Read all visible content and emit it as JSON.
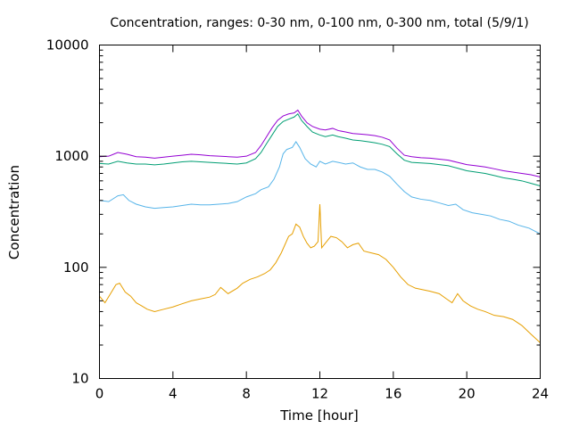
{
  "chart_data": {
    "type": "line",
    "title": "Concentration, ranges: 0-30 nm, 0-100 nm, 0-300 nm, total (5/9/1)",
    "xlabel": "Time [hour]",
    "ylabel": "Concentration",
    "xlim": [
      0,
      24
    ],
    "ylim": [
      10,
      10000
    ],
    "yscale": "log",
    "grid": false,
    "legend": "none",
    "x_ticks": [
      0,
      4,
      8,
      12,
      16,
      20,
      24
    ],
    "y_ticks": [
      10,
      100,
      1000,
      10000
    ],
    "x_tick_labels": [
      "0",
      "4",
      "8",
      "12",
      "16",
      "20",
      "24"
    ],
    "y_tick_labels": [
      "10",
      "100",
      "1000",
      "10000"
    ],
    "series": [
      {
        "color": "#e69f00",
        "points": [
          [
            0,
            55
          ],
          [
            0.3,
            48
          ],
          [
            0.6,
            58
          ],
          [
            0.9,
            70
          ],
          [
            1.1,
            72
          ],
          [
            1.4,
            60
          ],
          [
            1.7,
            55
          ],
          [
            2.0,
            48
          ],
          [
            2.3,
            45
          ],
          [
            2.6,
            42
          ],
          [
            3.0,
            40
          ],
          [
            3.5,
            42
          ],
          [
            4.0,
            44
          ],
          [
            4.5,
            47
          ],
          [
            5.0,
            50
          ],
          [
            5.5,
            52
          ],
          [
            6.0,
            54
          ],
          [
            6.3,
            57
          ],
          [
            6.6,
            66
          ],
          [
            7.0,
            58
          ],
          [
            7.5,
            65
          ],
          [
            7.8,
            72
          ],
          [
            8.2,
            78
          ],
          [
            8.6,
            82
          ],
          [
            9.0,
            88
          ],
          [
            9.3,
            95
          ],
          [
            9.6,
            110
          ],
          [
            9.9,
            135
          ],
          [
            10.1,
            160
          ],
          [
            10.3,
            190
          ],
          [
            10.5,
            200
          ],
          [
            10.7,
            245
          ],
          [
            10.9,
            230
          ],
          [
            11.1,
            190
          ],
          [
            11.3,
            165
          ],
          [
            11.5,
            150
          ],
          [
            11.7,
            155
          ],
          [
            11.9,
            170
          ],
          [
            12.0,
            370
          ],
          [
            12.1,
            150
          ],
          [
            12.3,
            165
          ],
          [
            12.6,
            190
          ],
          [
            12.9,
            185
          ],
          [
            13.2,
            170
          ],
          [
            13.5,
            150
          ],
          [
            13.8,
            160
          ],
          [
            14.1,
            165
          ],
          [
            14.4,
            140
          ],
          [
            14.8,
            135
          ],
          [
            15.2,
            130
          ],
          [
            15.6,
            118
          ],
          [
            16.0,
            100
          ],
          [
            16.4,
            82
          ],
          [
            16.8,
            70
          ],
          [
            17.2,
            65
          ],
          [
            17.6,
            63
          ],
          [
            18.0,
            61
          ],
          [
            18.5,
            58
          ],
          [
            18.9,
            52
          ],
          [
            19.2,
            48
          ],
          [
            19.5,
            58
          ],
          [
            19.8,
            50
          ],
          [
            20.2,
            45
          ],
          [
            20.6,
            42
          ],
          [
            21.0,
            40
          ],
          [
            21.5,
            37
          ],
          [
            22.0,
            36
          ],
          [
            22.5,
            34
          ],
          [
            23.0,
            30
          ],
          [
            23.5,
            25
          ],
          [
            24.0,
            21
          ]
        ]
      },
      {
        "color": "#56b4e9",
        "points": [
          [
            0,
            400
          ],
          [
            0.5,
            390
          ],
          [
            1.0,
            440
          ],
          [
            1.3,
            450
          ],
          [
            1.6,
            400
          ],
          [
            2.0,
            370
          ],
          [
            2.5,
            350
          ],
          [
            3.0,
            340
          ],
          [
            3.5,
            345
          ],
          [
            4.0,
            350
          ],
          [
            4.5,
            360
          ],
          [
            5.0,
            370
          ],
          [
            5.5,
            365
          ],
          [
            6.0,
            365
          ],
          [
            6.5,
            370
          ],
          [
            7.0,
            375
          ],
          [
            7.5,
            390
          ],
          [
            8.0,
            430
          ],
          [
            8.5,
            460
          ],
          [
            8.8,
            500
          ],
          [
            9.2,
            530
          ],
          [
            9.5,
            620
          ],
          [
            9.8,
            800
          ],
          [
            10.0,
            1050
          ],
          [
            10.2,
            1150
          ],
          [
            10.5,
            1200
          ],
          [
            10.7,
            1350
          ],
          [
            10.9,
            1200
          ],
          [
            11.2,
            950
          ],
          [
            11.5,
            850
          ],
          [
            11.8,
            800
          ],
          [
            12.0,
            900
          ],
          [
            12.3,
            850
          ],
          [
            12.7,
            900
          ],
          [
            13.0,
            880
          ],
          [
            13.4,
            850
          ],
          [
            13.8,
            870
          ],
          [
            14.2,
            800
          ],
          [
            14.6,
            760
          ],
          [
            15.0,
            760
          ],
          [
            15.4,
            720
          ],
          [
            15.8,
            660
          ],
          [
            16.2,
            560
          ],
          [
            16.6,
            480
          ],
          [
            17.0,
            430
          ],
          [
            17.5,
            410
          ],
          [
            18.0,
            400
          ],
          [
            18.5,
            380
          ],
          [
            19.0,
            360
          ],
          [
            19.4,
            370
          ],
          [
            19.8,
            330
          ],
          [
            20.3,
            310
          ],
          [
            20.8,
            300
          ],
          [
            21.3,
            290
          ],
          [
            21.8,
            270
          ],
          [
            22.3,
            260
          ],
          [
            22.8,
            240
          ],
          [
            23.4,
            225
          ],
          [
            24.0,
            200
          ]
        ]
      },
      {
        "color": "#009e73",
        "points": [
          [
            0,
            860
          ],
          [
            0.5,
            850
          ],
          [
            1.0,
            900
          ],
          [
            1.5,
            870
          ],
          [
            2.0,
            850
          ],
          [
            2.5,
            850
          ],
          [
            3.0,
            835
          ],
          [
            3.5,
            850
          ],
          [
            4.0,
            870
          ],
          [
            4.5,
            890
          ],
          [
            5.0,
            900
          ],
          [
            5.5,
            890
          ],
          [
            6.0,
            880
          ],
          [
            6.5,
            870
          ],
          [
            7.0,
            860
          ],
          [
            7.5,
            850
          ],
          [
            8.0,
            870
          ],
          [
            8.5,
            950
          ],
          [
            8.8,
            1080
          ],
          [
            9.1,
            1300
          ],
          [
            9.4,
            1550
          ],
          [
            9.7,
            1850
          ],
          [
            10.0,
            2050
          ],
          [
            10.3,
            2150
          ],
          [
            10.6,
            2250
          ],
          [
            10.8,
            2400
          ],
          [
            11.0,
            2100
          ],
          [
            11.3,
            1850
          ],
          [
            11.6,
            1650
          ],
          [
            12.0,
            1550
          ],
          [
            12.3,
            1500
          ],
          [
            12.7,
            1550
          ],
          [
            13.0,
            1500
          ],
          [
            13.4,
            1450
          ],
          [
            13.8,
            1400
          ],
          [
            14.2,
            1380
          ],
          [
            14.6,
            1350
          ],
          [
            15.0,
            1320
          ],
          [
            15.4,
            1280
          ],
          [
            15.8,
            1220
          ],
          [
            16.2,
            1050
          ],
          [
            16.6,
            920
          ],
          [
            17.0,
            880
          ],
          [
            17.5,
            870
          ],
          [
            18.0,
            860
          ],
          [
            18.5,
            840
          ],
          [
            19.0,
            820
          ],
          [
            19.5,
            780
          ],
          [
            20.0,
            740
          ],
          [
            20.5,
            720
          ],
          [
            21.0,
            700
          ],
          [
            21.5,
            670
          ],
          [
            22.0,
            640
          ],
          [
            22.5,
            620
          ],
          [
            23.0,
            600
          ],
          [
            23.5,
            570
          ],
          [
            24.0,
            540
          ]
        ]
      },
      {
        "color": "#9400d3",
        "points": [
          [
            0,
            990
          ],
          [
            0.5,
            1000
          ],
          [
            1.0,
            1080
          ],
          [
            1.5,
            1040
          ],
          [
            2.0,
            990
          ],
          [
            2.5,
            980
          ],
          [
            3.0,
            960
          ],
          [
            3.5,
            980
          ],
          [
            4.0,
            1000
          ],
          [
            4.5,
            1020
          ],
          [
            5.0,
            1040
          ],
          [
            5.5,
            1030
          ],
          [
            6.0,
            1010
          ],
          [
            6.5,
            1000
          ],
          [
            7.0,
            990
          ],
          [
            7.5,
            980
          ],
          [
            8.0,
            1000
          ],
          [
            8.5,
            1080
          ],
          [
            8.8,
            1250
          ],
          [
            9.1,
            1500
          ],
          [
            9.4,
            1800
          ],
          [
            9.7,
            2100
          ],
          [
            10.0,
            2300
          ],
          [
            10.3,
            2400
          ],
          [
            10.6,
            2450
          ],
          [
            10.8,
            2600
          ],
          [
            11.0,
            2300
          ],
          [
            11.3,
            2000
          ],
          [
            11.6,
            1850
          ],
          [
            12.0,
            1750
          ],
          [
            12.3,
            1720
          ],
          [
            12.7,
            1780
          ],
          [
            13.0,
            1700
          ],
          [
            13.4,
            1650
          ],
          [
            13.8,
            1600
          ],
          [
            14.2,
            1580
          ],
          [
            14.6,
            1560
          ],
          [
            15.0,
            1530
          ],
          [
            15.4,
            1480
          ],
          [
            15.8,
            1400
          ],
          [
            16.2,
            1180
          ],
          [
            16.6,
            1020
          ],
          [
            17.0,
            990
          ],
          [
            17.5,
            970
          ],
          [
            18.0,
            960
          ],
          [
            18.5,
            940
          ],
          [
            19.0,
            920
          ],
          [
            19.5,
            880
          ],
          [
            20.0,
            840
          ],
          [
            20.5,
            820
          ],
          [
            21.0,
            800
          ],
          [
            21.5,
            770
          ],
          [
            22.0,
            740
          ],
          [
            22.5,
            720
          ],
          [
            23.0,
            700
          ],
          [
            23.5,
            680
          ],
          [
            24.0,
            650
          ]
        ]
      }
    ]
  }
}
